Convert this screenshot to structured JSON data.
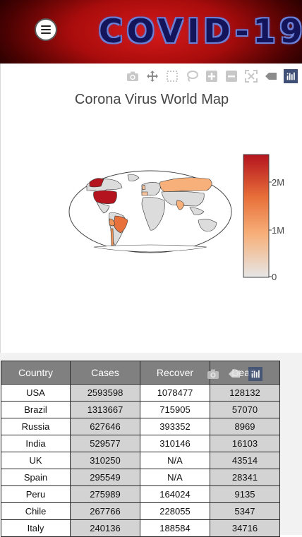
{
  "header": {
    "title": "COVID-19"
  },
  "map": {
    "title": "Corona Virus World Map",
    "colorbar_ticks": [
      "2M",
      "1M",
      "0"
    ],
    "colorscale": [
      "#e6e6e6",
      "#f7b07a",
      "#e8703a",
      "#b4141e"
    ],
    "modebar_icons": [
      "camera-icon",
      "pan-icon",
      "box-select-icon",
      "lasso-icon",
      "zoom-in-icon",
      "zoom-out-icon",
      "reset-icon",
      "hover-icon",
      "plotly-logo-icon"
    ]
  },
  "table": {
    "headers": [
      "Country",
      "Cases",
      "Recover",
      "Death"
    ],
    "rows": [
      [
        "USA",
        "2593598",
        "1078477",
        "128132"
      ],
      [
        "Brazil",
        "1313667",
        "715905",
        "57070"
      ],
      [
        "Russia",
        "627646",
        "393352",
        "8969"
      ],
      [
        "India",
        "529577",
        "310146",
        "16103"
      ],
      [
        "UK",
        "310250",
        "N/A",
        "43514"
      ],
      [
        "Spain",
        "295549",
        "N/A",
        "28341"
      ],
      [
        "Peru",
        "275989",
        "164024",
        "9135"
      ],
      [
        "Chile",
        "267766",
        "228055",
        "5347"
      ],
      [
        "Italy",
        "240136",
        "188584",
        "34716"
      ]
    ]
  }
}
